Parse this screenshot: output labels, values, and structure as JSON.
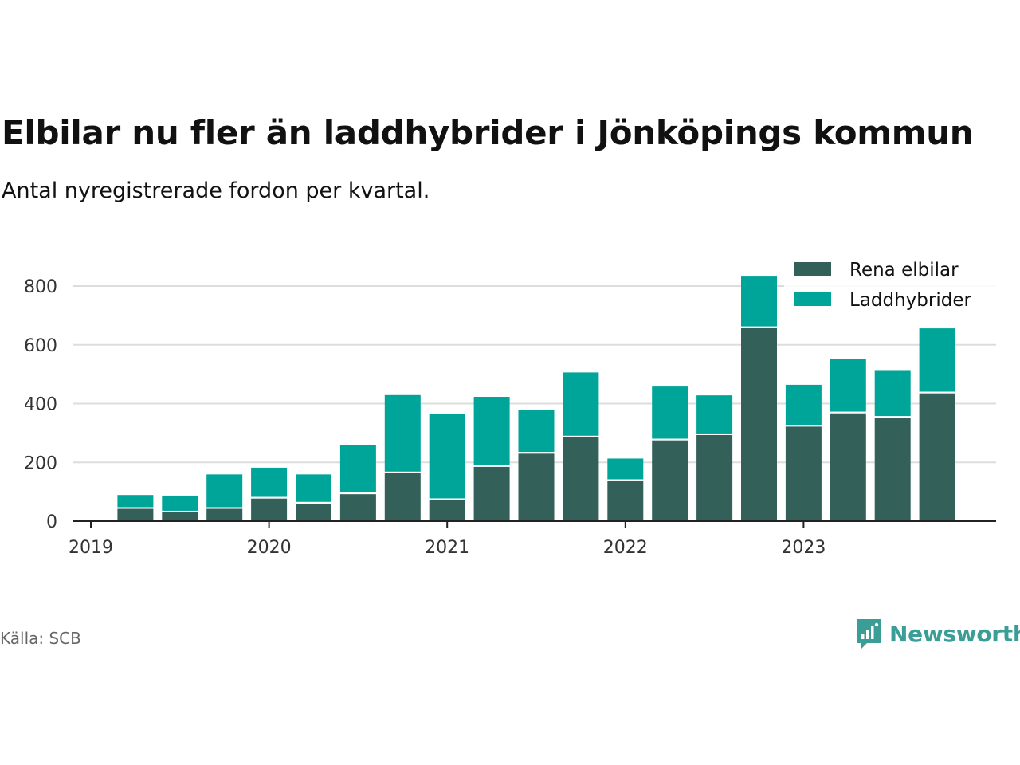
{
  "title": "Elbilar nu fler än laddhybrider i Jönköpings kommun",
  "subtitle": "Antal nyregistrerade fordon per kvartal.",
  "source": "Källa: SCB",
  "brand": {
    "name": "Newsworthy",
    "icon": "newsworthy-logo-icon",
    "color": "#3a9e96"
  },
  "colors": {
    "elbilar": "#34605a",
    "laddhybrider": "#00a59a",
    "grid": "#dddddd",
    "axis": "#222222"
  },
  "chart_data": {
    "type": "bar",
    "stacked": true,
    "categories": [
      "2019 Q2",
      "2019 Q3",
      "2019 Q4",
      "2020 Q1",
      "2020 Q2",
      "2020 Q3",
      "2020 Q4",
      "2021 Q1",
      "2021 Q2",
      "2021 Q3",
      "2021 Q4",
      "2022 Q1",
      "2022 Q2",
      "2022 Q3",
      "2022 Q4",
      "2023 Q1",
      "2023 Q2",
      "2023 Q3",
      "2023 Q4"
    ],
    "series": [
      {
        "name": "Rena elbilar",
        "values": [
          42,
          30,
          42,
          77,
          60,
          92,
          163,
          72,
          185,
          230,
          285,
          137,
          275,
          293,
          657,
          322,
          367,
          352,
          435
        ]
      },
      {
        "name": "Laddhybrider",
        "values": [
          47,
          57,
          117,
          105,
          99,
          168,
          266,
          292,
          238,
          147,
          221,
          76,
          183,
          135,
          178,
          142,
          186,
          162,
          221
        ]
      }
    ],
    "xticks": [
      "2019",
      "2020",
      "2021",
      "2022",
      "2023"
    ],
    "yticks": [
      0,
      200,
      400,
      600,
      800
    ],
    "ylim": [
      0,
      900
    ],
    "xlim": [
      2019.0,
      2024.0
    ],
    "grid": true,
    "legend": "top-right",
    "title": "Elbilar nu fler än laddhybrider i Jönköpings kommun",
    "xlabel": "",
    "ylabel": ""
  }
}
